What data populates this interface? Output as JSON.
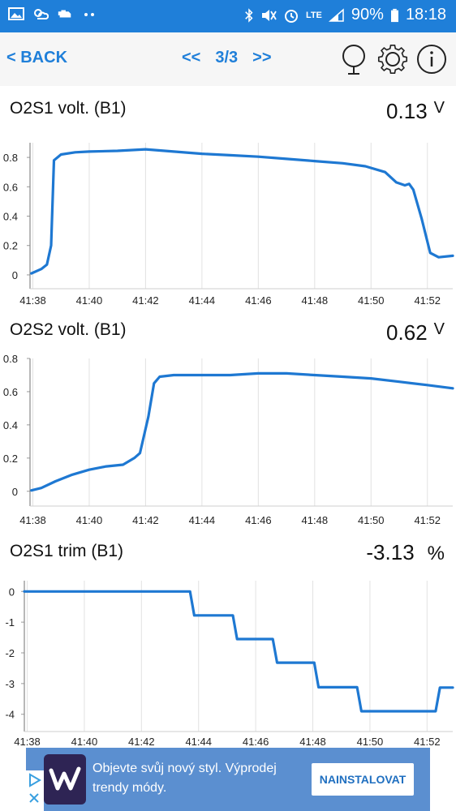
{
  "status_bar": {
    "network": "LTE",
    "battery": "90%",
    "time": "18:18",
    "background_color": "#1f7fd9"
  },
  "toolbar": {
    "back_label": "< BACK",
    "prev_label": "<<",
    "page_indicator": "3/3",
    "next_label": ">>",
    "icons": [
      "mirror-icon",
      "gear-icon",
      "info-icon"
    ],
    "accent_color": "#1f7fd9"
  },
  "sections": [
    {
      "title": "O2S1 volt. (B1)",
      "value": "0.13",
      "unit": "V"
    },
    {
      "title": "O2S2 volt. (B1)",
      "value": "0.62",
      "unit": "V"
    },
    {
      "title": "O2S1 trim (B1)",
      "value": "-3.13",
      "unit": "%"
    }
  ],
  "chart_data": [
    {
      "type": "line",
      "title": "O2S1 volt. (B1)",
      "x_unit": "minutes",
      "xlim": [
        37.9,
        52.9
      ],
      "ylim": [
        -0.05,
        0.9
      ],
      "yticks": [
        0,
        0.2,
        0.4,
        0.6,
        0.8
      ],
      "ytick_labels": [
        "0",
        "0.2",
        "0.4",
        "0.6",
        "0.8"
      ],
      "xticks": [
        38,
        40,
        42,
        44,
        46,
        48,
        50,
        52
      ],
      "xtick_labels": [
        "41:38",
        "41:40",
        "41:42",
        "41:44",
        "41:46",
        "41:48",
        "41:50",
        "41:52"
      ],
      "grid": true,
      "series": [
        {
          "color": "#1e78d2",
          "x": [
            37.95,
            38.3,
            38.5,
            38.65,
            38.75,
            39.0,
            39.5,
            40.0,
            41.0,
            42.0,
            43.0,
            44.0,
            45.0,
            46.0,
            47.0,
            48.0,
            49.0,
            49.8,
            50.5,
            50.9,
            51.2,
            51.35,
            51.5,
            51.8,
            52.1,
            52.4,
            52.9
          ],
          "y": [
            0.01,
            0.04,
            0.07,
            0.2,
            0.78,
            0.82,
            0.835,
            0.84,
            0.845,
            0.855,
            0.84,
            0.825,
            0.815,
            0.805,
            0.79,
            0.775,
            0.76,
            0.74,
            0.7,
            0.63,
            0.61,
            0.62,
            0.58,
            0.38,
            0.15,
            0.12,
            0.13
          ]
        }
      ]
    },
    {
      "type": "line",
      "title": "O2S2 volt. (B1)",
      "x_unit": "minutes",
      "xlim": [
        37.9,
        52.9
      ],
      "ylim": [
        -0.05,
        0.8
      ],
      "yticks": [
        0,
        0.2,
        0.4,
        0.6,
        0.8
      ],
      "ytick_labels": [
        "0",
        "0.2",
        "0.4",
        "0.6",
        "0.8"
      ],
      "xticks": [
        38,
        40,
        42,
        44,
        46,
        48,
        50,
        52
      ],
      "xtick_labels": [
        "41:38",
        "41:40",
        "41:42",
        "41:44",
        "41:46",
        "41:48",
        "41:50",
        "41:52"
      ],
      "grid": true,
      "series": [
        {
          "color": "#1e78d2",
          "x": [
            37.95,
            38.3,
            38.8,
            39.4,
            40.0,
            40.6,
            41.2,
            41.6,
            41.8,
            42.1,
            42.3,
            42.5,
            43.0,
            44.0,
            45.0,
            46.0,
            47.0,
            48.0,
            49.0,
            50.0,
            51.0,
            52.0,
            52.9
          ],
          "y": [
            0.005,
            0.02,
            0.06,
            0.1,
            0.13,
            0.15,
            0.16,
            0.2,
            0.23,
            0.45,
            0.65,
            0.69,
            0.7,
            0.7,
            0.7,
            0.71,
            0.71,
            0.7,
            0.69,
            0.68,
            0.66,
            0.64,
            0.62
          ]
        }
      ]
    },
    {
      "type": "line",
      "title": "O2S1 trim (B1)",
      "x_unit": "minutes",
      "xlim": [
        37.9,
        52.9
      ],
      "ylim": [
        -4.35,
        0.35
      ],
      "yticks": [
        0,
        -1,
        -2,
        -3,
        -4
      ],
      "ytick_labels": [
        "0",
        "-1",
        "-2",
        "-3",
        "-4"
      ],
      "xticks": [
        38,
        40,
        42,
        44,
        46,
        48,
        50,
        52
      ],
      "xtick_labels": [
        "41:38",
        "41:40",
        "41:42",
        "41:44",
        "41:46",
        "41:48",
        "41:50",
        "41:52"
      ],
      "grid": true,
      "series": [
        {
          "color": "#1e78d2",
          "x": [
            37.9,
            43.7,
            43.85,
            45.2,
            45.35,
            46.6,
            46.75,
            48.05,
            48.2,
            49.55,
            49.7,
            52.3,
            52.45,
            52.9
          ],
          "y": [
            0,
            0,
            -0.78,
            -0.78,
            -1.55,
            -1.55,
            -2.32,
            -2.32,
            -3.12,
            -3.12,
            -3.9,
            -3.9,
            -3.13,
            -3.13
          ]
        }
      ]
    }
  ],
  "ad": {
    "line1": "Objevte svůj nový styl. Výprodej",
    "line2": "trendy módy.",
    "button_label": "NAINSTALOVAT",
    "logo_letter": "W",
    "background_color": "#5b8fd0"
  }
}
